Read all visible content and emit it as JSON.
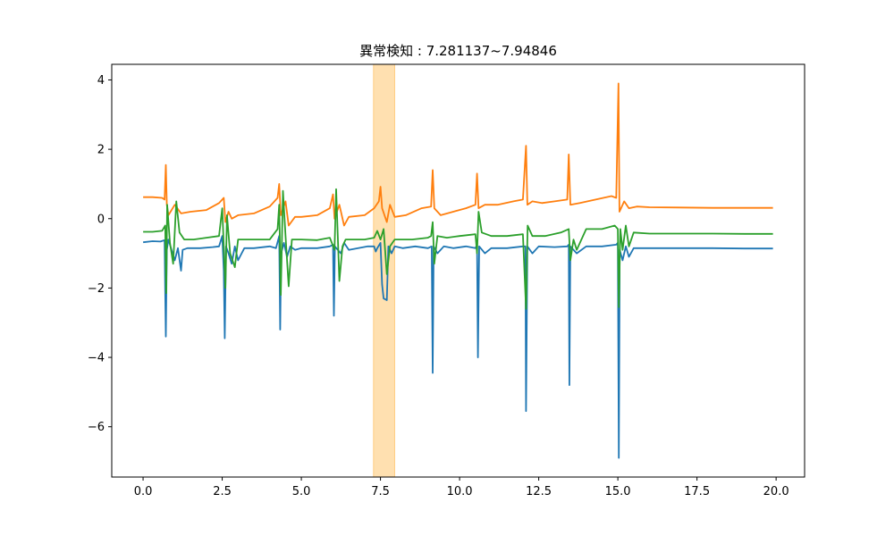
{
  "chart_data": {
    "type": "line",
    "title": "異常検知 : 7.281137~7.94846",
    "xlabel": "",
    "ylabel": "",
    "xlim": [
      -0.99,
      20.9
    ],
    "ylim": [
      -7.45,
      4.45
    ],
    "xticks": [
      0.0,
      2.5,
      5.0,
      7.5,
      10.0,
      12.5,
      15.0,
      17.5,
      20.0
    ],
    "xtick_labels": [
      "0.0",
      "2.5",
      "5.0",
      "7.5",
      "10.0",
      "12.5",
      "15.0",
      "17.5",
      "20.0"
    ],
    "yticks": [
      4,
      2,
      0,
      -2,
      -4,
      -6
    ],
    "ytick_labels": [
      "4",
      "2",
      "0",
      "−2",
      "−4",
      "−6"
    ],
    "grid": false,
    "highlight": {
      "x_start": 7.281137,
      "x_end": 7.94846,
      "color": "#ffe0b0",
      "edge_color": "#ffcc80"
    },
    "series": [
      {
        "color": "#1f77b4",
        "points": [
          [
            0.0,
            -0.68
          ],
          [
            0.3,
            -0.65
          ],
          [
            0.55,
            -0.66
          ],
          [
            0.68,
            -0.62
          ],
          [
            0.7,
            -2.1
          ],
          [
            0.72,
            -3.4
          ],
          [
            0.75,
            -0.9
          ],
          [
            0.8,
            -0.6
          ],
          [
            0.9,
            -0.9
          ],
          [
            1.0,
            -1.2
          ],
          [
            1.1,
            -0.85
          ],
          [
            1.2,
            -1.5
          ],
          [
            1.25,
            -0.9
          ],
          [
            1.4,
            -0.85
          ],
          [
            1.8,
            -0.85
          ],
          [
            2.2,
            -0.82
          ],
          [
            2.4,
            -0.8
          ],
          [
            2.5,
            -0.5
          ],
          [
            2.55,
            -1.5
          ],
          [
            2.58,
            -3.45
          ],
          [
            2.62,
            -0.8
          ],
          [
            2.7,
            -1.0
          ],
          [
            2.8,
            -1.3
          ],
          [
            2.9,
            -0.8
          ],
          [
            3.0,
            -1.2
          ],
          [
            3.2,
            -0.85
          ],
          [
            3.5,
            -0.85
          ],
          [
            4.0,
            -0.8
          ],
          [
            4.2,
            -0.85
          ],
          [
            4.3,
            -0.5
          ],
          [
            4.33,
            -3.2
          ],
          [
            4.36,
            -1.0
          ],
          [
            4.45,
            -0.7
          ],
          [
            4.55,
            -1.1
          ],
          [
            4.65,
            -0.8
          ],
          [
            4.8,
            -0.9
          ],
          [
            5.0,
            -0.85
          ],
          [
            5.5,
            -0.85
          ],
          [
            5.9,
            -0.8
          ],
          [
            6.0,
            -0.75
          ],
          [
            6.03,
            -2.8
          ],
          [
            6.06,
            -0.8
          ],
          [
            6.15,
            -0.9
          ],
          [
            6.25,
            -1.0
          ],
          [
            6.35,
            -0.7
          ],
          [
            6.5,
            -0.9
          ],
          [
            6.8,
            -0.85
          ],
          [
            7.1,
            -0.8
          ],
          [
            7.3,
            -0.8
          ],
          [
            7.35,
            -0.95
          ],
          [
            7.4,
            -0.85
          ],
          [
            7.5,
            -0.7
          ],
          [
            7.55,
            -1.9
          ],
          [
            7.6,
            -2.3
          ],
          [
            7.7,
            -2.35
          ],
          [
            7.75,
            -0.8
          ],
          [
            7.85,
            -1.0
          ],
          [
            7.95,
            -0.8
          ],
          [
            8.2,
            -0.85
          ],
          [
            8.6,
            -0.8
          ],
          [
            9.0,
            -0.85
          ],
          [
            9.12,
            -0.8
          ],
          [
            9.15,
            -4.45
          ],
          [
            9.18,
            -0.8
          ],
          [
            9.3,
            -1.0
          ],
          [
            9.5,
            -0.8
          ],
          [
            9.8,
            -0.85
          ],
          [
            10.2,
            -0.8
          ],
          [
            10.5,
            -0.85
          ],
          [
            10.55,
            -0.75
          ],
          [
            10.58,
            -4.0
          ],
          [
            10.62,
            -0.8
          ],
          [
            10.8,
            -1.0
          ],
          [
            11.0,
            -0.85
          ],
          [
            11.5,
            -0.85
          ],
          [
            12.0,
            -0.8
          ],
          [
            12.08,
            -0.8
          ],
          [
            12.1,
            -5.55
          ],
          [
            12.14,
            -0.8
          ],
          [
            12.3,
            -1.0
          ],
          [
            12.5,
            -0.8
          ],
          [
            13.0,
            -0.82
          ],
          [
            13.4,
            -0.8
          ],
          [
            13.45,
            -0.75
          ],
          [
            13.47,
            -4.8
          ],
          [
            13.5,
            -0.8
          ],
          [
            13.7,
            -1.0
          ],
          [
            14.0,
            -0.8
          ],
          [
            14.5,
            -0.8
          ],
          [
            14.95,
            -0.75
          ],
          [
            15.0,
            -0.7
          ],
          [
            15.03,
            -6.9
          ],
          [
            15.06,
            -0.9
          ],
          [
            15.15,
            -1.2
          ],
          [
            15.25,
            -0.8
          ],
          [
            15.35,
            -1.1
          ],
          [
            15.5,
            -0.85
          ],
          [
            16.0,
            -0.85
          ],
          [
            17.0,
            -0.85
          ],
          [
            18.0,
            -0.85
          ],
          [
            19.0,
            -0.86
          ],
          [
            19.9,
            -0.86
          ]
        ]
      },
      {
        "color": "#ff7f0e",
        "points": [
          [
            0.0,
            0.62
          ],
          [
            0.3,
            0.62
          ],
          [
            0.6,
            0.6
          ],
          [
            0.68,
            0.55
          ],
          [
            0.72,
            1.55
          ],
          [
            0.75,
            0.4
          ],
          [
            0.8,
            0.1
          ],
          [
            0.9,
            0.25
          ],
          [
            1.0,
            0.4
          ],
          [
            1.2,
            0.15
          ],
          [
            1.5,
            0.2
          ],
          [
            2.0,
            0.25
          ],
          [
            2.4,
            0.45
          ],
          [
            2.55,
            0.6
          ],
          [
            2.6,
            -0.1
          ],
          [
            2.7,
            0.2
          ],
          [
            2.8,
            0.0
          ],
          [
            3.0,
            0.1
          ],
          [
            3.5,
            0.15
          ],
          [
            4.0,
            0.35
          ],
          [
            4.25,
            0.6
          ],
          [
            4.3,
            1.0
          ],
          [
            4.35,
            0.1
          ],
          [
            4.5,
            0.5
          ],
          [
            4.6,
            -0.2
          ],
          [
            4.8,
            0.05
          ],
          [
            5.0,
            0.05
          ],
          [
            5.5,
            0.1
          ],
          [
            5.9,
            0.3
          ],
          [
            6.0,
            0.7
          ],
          [
            6.05,
            0.0
          ],
          [
            6.2,
            0.4
          ],
          [
            6.35,
            -0.2
          ],
          [
            6.5,
            0.05
          ],
          [
            7.0,
            0.1
          ],
          [
            7.3,
            0.3
          ],
          [
            7.45,
            0.5
          ],
          [
            7.5,
            0.92
          ],
          [
            7.55,
            0.3
          ],
          [
            7.7,
            -0.1
          ],
          [
            7.8,
            0.4
          ],
          [
            7.95,
            0.05
          ],
          [
            8.3,
            0.1
          ],
          [
            8.8,
            0.3
          ],
          [
            9.1,
            0.35
          ],
          [
            9.15,
            1.4
          ],
          [
            9.2,
            0.3
          ],
          [
            9.4,
            0.1
          ],
          [
            9.8,
            0.2
          ],
          [
            10.2,
            0.3
          ],
          [
            10.5,
            0.4
          ],
          [
            10.55,
            1.3
          ],
          [
            10.6,
            0.3
          ],
          [
            10.8,
            0.4
          ],
          [
            11.2,
            0.4
          ],
          [
            11.7,
            0.5
          ],
          [
            12.0,
            0.55
          ],
          [
            12.1,
            2.1
          ],
          [
            12.14,
            0.4
          ],
          [
            12.3,
            0.5
          ],
          [
            12.6,
            0.45
          ],
          [
            13.0,
            0.5
          ],
          [
            13.4,
            0.55
          ],
          [
            13.45,
            1.85
          ],
          [
            13.5,
            0.4
          ],
          [
            13.8,
            0.45
          ],
          [
            14.3,
            0.55
          ],
          [
            14.8,
            0.65
          ],
          [
            14.95,
            0.6
          ],
          [
            15.02,
            3.9
          ],
          [
            15.05,
            0.2
          ],
          [
            15.2,
            0.5
          ],
          [
            15.35,
            0.3
          ],
          [
            15.6,
            0.35
          ],
          [
            16.0,
            0.33
          ],
          [
            17.0,
            0.32
          ],
          [
            18.0,
            0.31
          ],
          [
            19.0,
            0.31
          ],
          [
            19.9,
            0.31
          ]
        ]
      },
      {
        "color": "#2ca02c",
        "points": [
          [
            0.0,
            -0.38
          ],
          [
            0.3,
            -0.38
          ],
          [
            0.6,
            -0.35
          ],
          [
            0.7,
            -0.2
          ],
          [
            0.73,
            -2.15
          ],
          [
            0.76,
            0.4
          ],
          [
            0.85,
            -0.7
          ],
          [
            0.95,
            -1.3
          ],
          [
            1.05,
            0.5
          ],
          [
            1.15,
            -0.4
          ],
          [
            1.3,
            -0.6
          ],
          [
            1.6,
            -0.6
          ],
          [
            2.0,
            -0.55
          ],
          [
            2.4,
            -0.5
          ],
          [
            2.5,
            0.3
          ],
          [
            2.55,
            -0.8
          ],
          [
            2.6,
            -2.0
          ],
          [
            2.65,
            0.1
          ],
          [
            2.75,
            -1.0
          ],
          [
            2.9,
            -1.4
          ],
          [
            3.0,
            -0.6
          ],
          [
            3.5,
            -0.6
          ],
          [
            4.0,
            -0.6
          ],
          [
            4.25,
            -0.3
          ],
          [
            4.3,
            0.4
          ],
          [
            4.35,
            -2.2
          ],
          [
            4.42,
            0.8
          ],
          [
            4.5,
            -0.5
          ],
          [
            4.6,
            -1.95
          ],
          [
            4.7,
            -0.6
          ],
          [
            5.0,
            -0.6
          ],
          [
            5.5,
            -0.62
          ],
          [
            5.9,
            -0.55
          ],
          [
            6.05,
            -0.9
          ],
          [
            6.1,
            0.85
          ],
          [
            6.2,
            -1.8
          ],
          [
            6.3,
            -0.8
          ],
          [
            6.4,
            -0.6
          ],
          [
            7.0,
            -0.6
          ],
          [
            7.3,
            -0.55
          ],
          [
            7.4,
            -0.35
          ],
          [
            7.5,
            -0.6
          ],
          [
            7.6,
            -0.3
          ],
          [
            7.7,
            -1.6
          ],
          [
            7.8,
            -0.8
          ],
          [
            7.95,
            -0.6
          ],
          [
            8.5,
            -0.6
          ],
          [
            9.0,
            -0.55
          ],
          [
            9.1,
            -0.5
          ],
          [
            9.15,
            -0.1
          ],
          [
            9.2,
            -1.3
          ],
          [
            9.3,
            -0.5
          ],
          [
            9.6,
            -0.55
          ],
          [
            10.0,
            -0.5
          ],
          [
            10.5,
            -0.45
          ],
          [
            10.55,
            -1.0
          ],
          [
            10.6,
            0.2
          ],
          [
            10.7,
            -0.4
          ],
          [
            11.0,
            -0.5
          ],
          [
            11.5,
            -0.5
          ],
          [
            12.0,
            -0.45
          ],
          [
            12.1,
            -2.6
          ],
          [
            12.15,
            -0.2
          ],
          [
            12.3,
            -0.5
          ],
          [
            12.7,
            -0.5
          ],
          [
            13.2,
            -0.4
          ],
          [
            13.45,
            -0.3
          ],
          [
            13.5,
            -1.2
          ],
          [
            13.6,
            -0.6
          ],
          [
            13.7,
            -0.9
          ],
          [
            14.0,
            -0.3
          ],
          [
            14.5,
            -0.3
          ],
          [
            14.9,
            -0.2
          ],
          [
            15.0,
            -0.3
          ],
          [
            15.03,
            -2.55
          ],
          [
            15.08,
            -0.3
          ],
          [
            15.15,
            -0.9
          ],
          [
            15.25,
            -0.2
          ],
          [
            15.35,
            -0.8
          ],
          [
            15.5,
            -0.4
          ],
          [
            16.0,
            -0.43
          ],
          [
            17.0,
            -0.43
          ],
          [
            18.0,
            -0.43
          ],
          [
            19.0,
            -0.44
          ],
          [
            19.9,
            -0.44
          ]
        ]
      }
    ]
  }
}
